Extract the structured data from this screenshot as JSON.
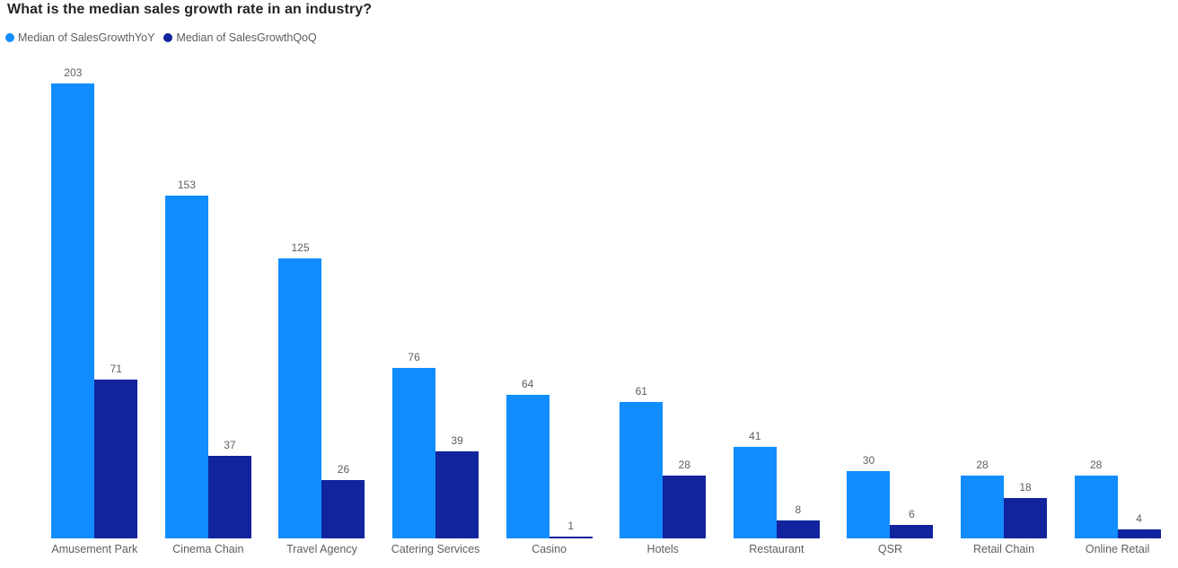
{
  "header": {
    "title": "What is the median sales growth rate in an industry?"
  },
  "legend": {
    "items": [
      {
        "label": "Median of SalesGrowthYoY",
        "color": "#118DFF"
      },
      {
        "label": "Median of SalesGrowthQoQ",
        "color": "#12239E"
      }
    ]
  },
  "colors": {
    "series_yoy": "#118DFF",
    "series_qoq": "#12239E",
    "title_text": "#252423",
    "label_text": "#605E5C",
    "background": "#FFFFFF"
  },
  "chart_data": {
    "type": "bar",
    "title": "What is the median sales growth rate in an industry?",
    "categories": [
      "Amusement Park",
      "Cinema Chain",
      "Travel Agency",
      "Catering Services",
      "Casino",
      "Hotels",
      "Restaurant",
      "QSR",
      "Retail Chain",
      "Online Retail"
    ],
    "series": [
      {
        "name": "Median of SalesGrowthYoY",
        "color": "#118DFF",
        "values": [
          203,
          153,
          125,
          76,
          64,
          61,
          41,
          30,
          28,
          28
        ]
      },
      {
        "name": "Median of SalesGrowthQoQ",
        "color": "#12239E",
        "values": [
          71,
          37,
          26,
          39,
          1,
          28,
          8,
          6,
          18,
          4
        ]
      }
    ],
    "xlabel": "",
    "ylabel": "",
    "ylim": [
      0,
      210
    ],
    "grid": false,
    "y_axis_visible": false,
    "data_labels": true,
    "legend_position": "top-left"
  }
}
